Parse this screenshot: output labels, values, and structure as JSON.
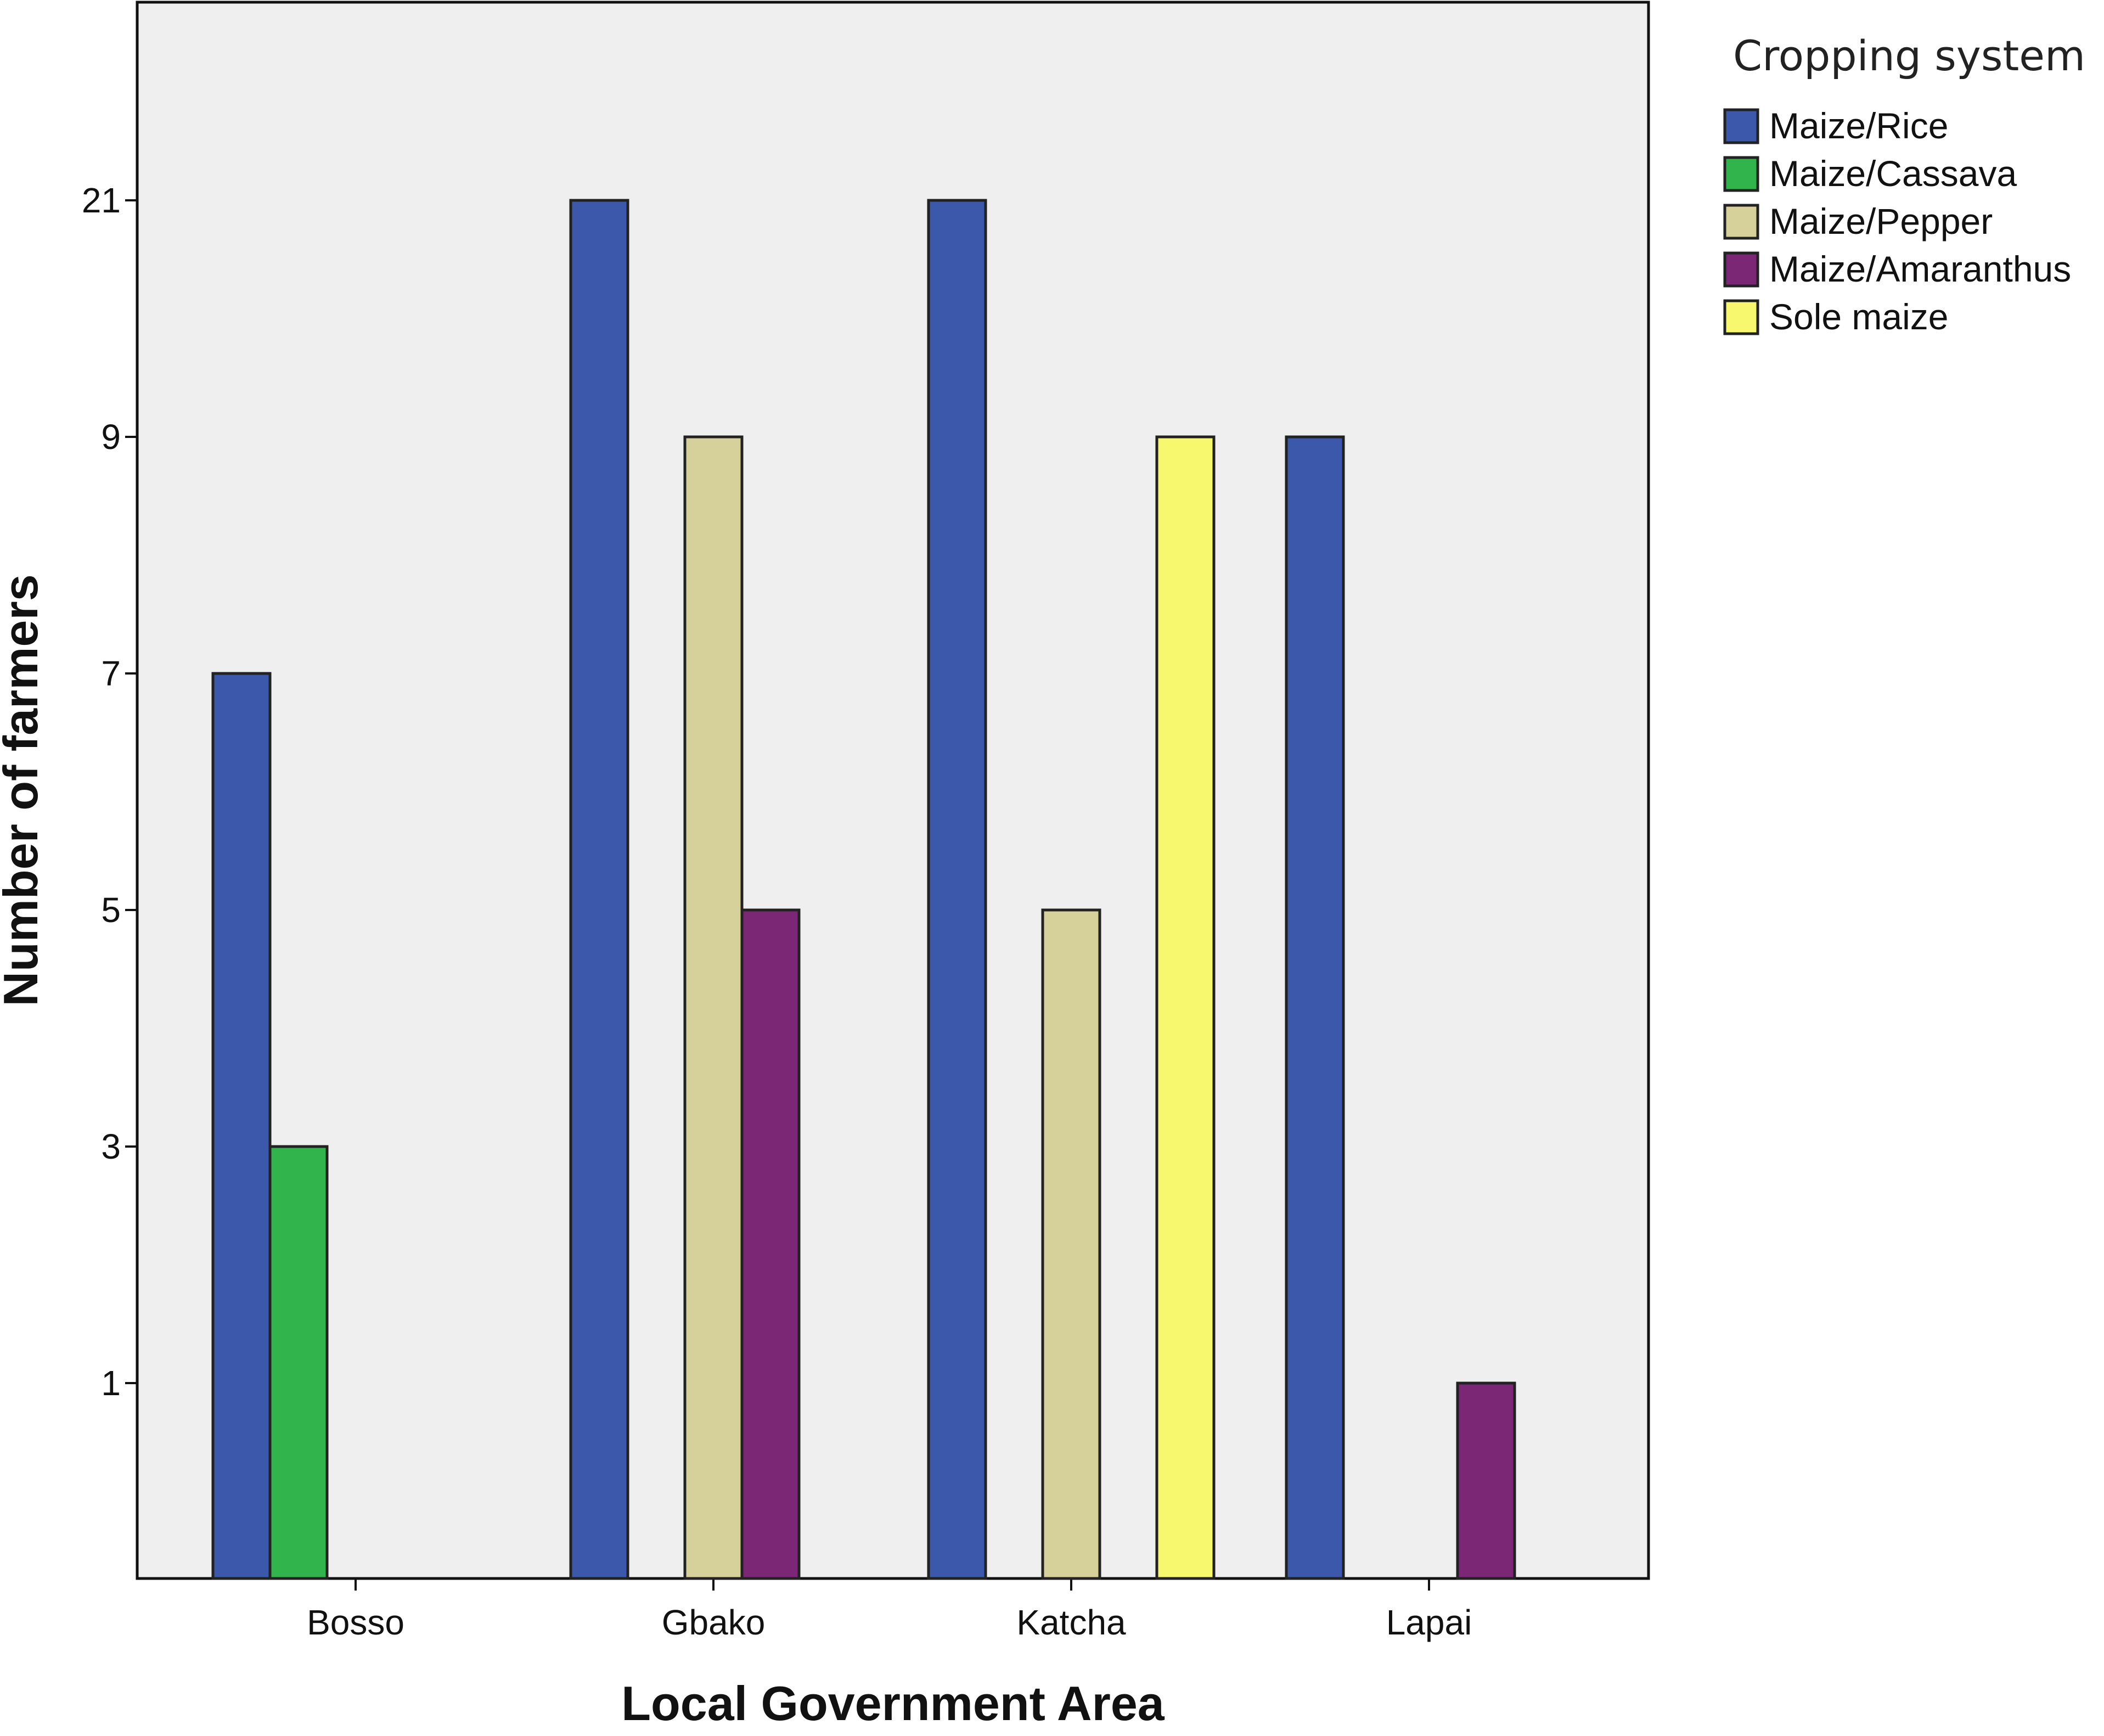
{
  "chart_data": {
    "type": "bar",
    "xlabel": "Local Government Area",
    "ylabel": "Number of farmers",
    "categories": [
      "Bosso",
      "Gbako",
      "Katcha",
      "Lapai"
    ],
    "y_ticks": [
      1,
      3,
      5,
      7,
      9,
      21
    ],
    "y_scale": "categorical (equally spaced tick values)",
    "grid": false,
    "legend": {
      "title": "Cropping system",
      "position": "top-right, outside plot"
    },
    "series": [
      {
        "name": "Maize/Rice",
        "color": "#3c58ab",
        "values": [
          7,
          21,
          21,
          9
        ]
      },
      {
        "name": "Maize/Cassava",
        "color": "#31b44b",
        "values": [
          3,
          null,
          null,
          null
        ]
      },
      {
        "name": "Maize/Pepper",
        "color": "#d6d09a",
        "values": [
          null,
          9,
          5,
          null
        ]
      },
      {
        "name": "Maize/Amaranthus",
        "color": "#7b2776",
        "values": [
          null,
          5,
          null,
          1
        ]
      },
      {
        "name": "Sole maize",
        "color": "#f8f86e",
        "values": [
          null,
          null,
          9,
          null
        ]
      }
    ],
    "plot_background": "#efefef"
  }
}
